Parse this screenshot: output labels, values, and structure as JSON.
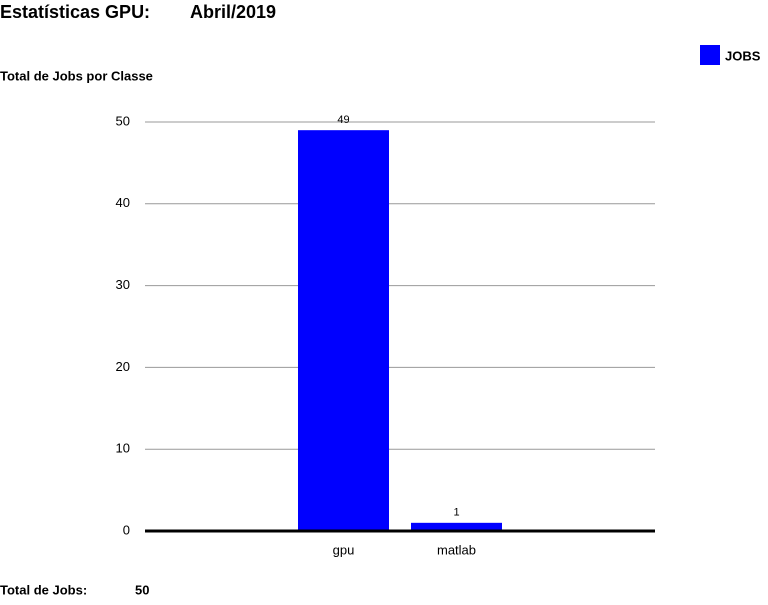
{
  "header": {
    "title": "Estatísticas GPU:",
    "period": "Abril/2019"
  },
  "chart_data": {
    "type": "bar",
    "subtitle": "Total de Jobs por Classe",
    "categories": [
      "gpu",
      "matlab"
    ],
    "series": [
      {
        "name": "JOBS",
        "color": "#0000ff",
        "values": [
          49,
          1
        ]
      }
    ],
    "ylim": [
      0,
      50
    ],
    "yticks": [
      0,
      10,
      20,
      30,
      40,
      50
    ],
    "grid": true,
    "legend": "top-right"
  },
  "footer": {
    "label": "Total de Jobs:",
    "value": "50"
  }
}
